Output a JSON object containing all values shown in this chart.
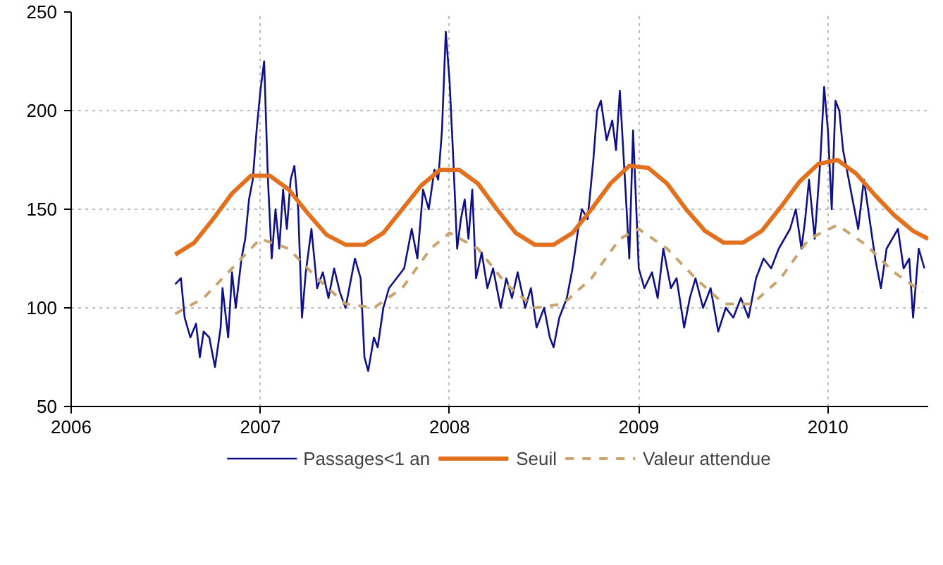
{
  "chart_data": {
    "type": "line",
    "xlim": [
      2006,
      2010.53
    ],
    "xticks": [
      2006,
      2007,
      2008,
      2009,
      2010
    ],
    "ylim": [
      50,
      250
    ],
    "yticks": [
      50,
      100,
      150,
      200,
      250
    ],
    "grid": true,
    "legend": "bottom",
    "marker": "none",
    "series": [
      {
        "name": "Passages<1 an",
        "color": "#10108a",
        "line_style": "solid",
        "x": [
          2006.55,
          2006.58,
          2006.6,
          2006.63,
          2006.66,
          2006.68,
          2006.7,
          2006.73,
          2006.76,
          2006.79,
          2006.8,
          2006.83,
          2006.85,
          2006.87,
          2006.9,
          2006.92,
          2006.94,
          2006.96,
          2006.98,
          2007.0,
          2007.02,
          2007.04,
          2007.06,
          2007.08,
          2007.1,
          2007.12,
          2007.14,
          2007.16,
          2007.18,
          2007.2,
          2007.22,
          2007.24,
          2007.27,
          2007.3,
          2007.33,
          2007.36,
          2007.39,
          2007.42,
          2007.45,
          2007.48,
          2007.5,
          2007.53,
          2007.55,
          2007.57,
          2007.6,
          2007.62,
          2007.65,
          2007.68,
          2007.72,
          2007.76,
          2007.8,
          2007.83,
          2007.86,
          2007.89,
          2007.92,
          2007.94,
          2007.96,
          2007.98,
          2008.0,
          2008.02,
          2008.04,
          2008.06,
          2008.08,
          2008.1,
          2008.12,
          2008.14,
          2008.17,
          2008.2,
          2008.23,
          2008.27,
          2008.3,
          2008.33,
          2008.36,
          2008.4,
          2008.43,
          2008.46,
          2008.5,
          2008.53,
          2008.55,
          2008.58,
          2008.62,
          2008.65,
          2008.68,
          2008.7,
          2008.73,
          2008.76,
          2008.78,
          2008.8,
          2008.83,
          2008.86,
          2008.88,
          2008.9,
          2008.93,
          2008.95,
          2008.97,
          2009.0,
          2009.03,
          2009.07,
          2009.1,
          2009.13,
          2009.17,
          2009.2,
          2009.24,
          2009.27,
          2009.3,
          2009.34,
          2009.38,
          2009.42,
          2009.46,
          2009.5,
          2009.54,
          2009.58,
          2009.62,
          2009.66,
          2009.7,
          2009.74,
          2009.77,
          2009.8,
          2009.83,
          2009.86,
          2009.88,
          2009.9,
          2009.93,
          2009.96,
          2009.98,
          2010.0,
          2010.02,
          2010.04,
          2010.06,
          2010.08,
          2010.1,
          2010.13,
          2010.16,
          2010.19,
          2010.22,
          2010.25,
          2010.28,
          2010.31,
          2010.34,
          2010.37,
          2010.4,
          2010.43,
          2010.45,
          2010.48,
          2010.51
        ],
        "values": [
          112,
          115,
          95,
          85,
          92,
          75,
          88,
          85,
          70,
          90,
          110,
          85,
          118,
          100,
          125,
          135,
          155,
          165,
          190,
          210,
          225,
          165,
          125,
          150,
          130,
          160,
          140,
          165,
          172,
          150,
          95,
          118,
          140,
          110,
          118,
          105,
          120,
          108,
          100,
          115,
          125,
          115,
          75,
          68,
          85,
          80,
          100,
          110,
          115,
          120,
          140,
          125,
          160,
          150,
          170,
          165,
          190,
          240,
          215,
          175,
          130,
          145,
          155,
          135,
          160,
          115,
          128,
          110,
          120,
          100,
          115,
          105,
          118,
          100,
          110,
          90,
          100,
          85,
          80,
          95,
          105,
          120,
          140,
          150,
          145,
          175,
          200,
          205,
          185,
          195,
          180,
          210,
          160,
          125,
          190,
          120,
          110,
          118,
          105,
          130,
          110,
          115,
          90,
          105,
          115,
          100,
          110,
          88,
          100,
          95,
          105,
          95,
          115,
          125,
          120,
          130,
          135,
          140,
          150,
          130,
          145,
          165,
          135,
          175,
          212,
          190,
          150,
          205,
          200,
          180,
          170,
          155,
          140,
          165,
          145,
          125,
          110,
          130,
          135,
          140,
          120,
          125,
          95,
          130,
          120
        ]
      },
      {
        "name": "Seuil",
        "color": "#e2701e",
        "line_style": "solid",
        "x": [
          2006.55,
          2006.65,
          2006.75,
          2006.85,
          2006.95,
          2007.05,
          2007.15,
          2007.25,
          2007.35,
          2007.45,
          2007.55,
          2007.65,
          2007.75,
          2007.85,
          2007.95,
          2008.05,
          2008.15,
          2008.25,
          2008.35,
          2008.45,
          2008.55,
          2008.65,
          2008.75,
          2008.85,
          2008.95,
          2009.05,
          2009.15,
          2009.25,
          2009.35,
          2009.45,
          2009.55,
          2009.65,
          2009.75,
          2009.85,
          2009.95,
          2010.05,
          2010.15,
          2010.25,
          2010.35,
          2010.45,
          2010.53
        ],
        "values": [
          127,
          133,
          145,
          158,
          167,
          167,
          160,
          148,
          137,
          132,
          132,
          138,
          150,
          162,
          170,
          170,
          163,
          150,
          138,
          132,
          132,
          138,
          150,
          163,
          172,
          171,
          163,
          150,
          139,
          133,
          133,
          139,
          151,
          164,
          173,
          175,
          168,
          157,
          147,
          139,
          135
        ]
      },
      {
        "name": "Valeur attendue",
        "color": "#c9a46e",
        "line_style": "dashed",
        "x": [
          2006.55,
          2006.7,
          2006.85,
          2007.0,
          2007.15,
          2007.3,
          2007.45,
          2007.6,
          2007.75,
          2007.9,
          2008.0,
          2008.15,
          2008.3,
          2008.45,
          2008.6,
          2008.75,
          2008.9,
          2009.0,
          2009.15,
          2009.3,
          2009.45,
          2009.6,
          2009.75,
          2009.9,
          2010.05,
          2010.2,
          2010.35,
          2010.5
        ],
        "values": [
          97,
          105,
          120,
          135,
          130,
          115,
          102,
          100,
          110,
          130,
          138,
          130,
          112,
          100,
          102,
          115,
          135,
          140,
          130,
          115,
          102,
          102,
          115,
          135,
          142,
          132,
          118,
          108
        ]
      }
    ]
  }
}
